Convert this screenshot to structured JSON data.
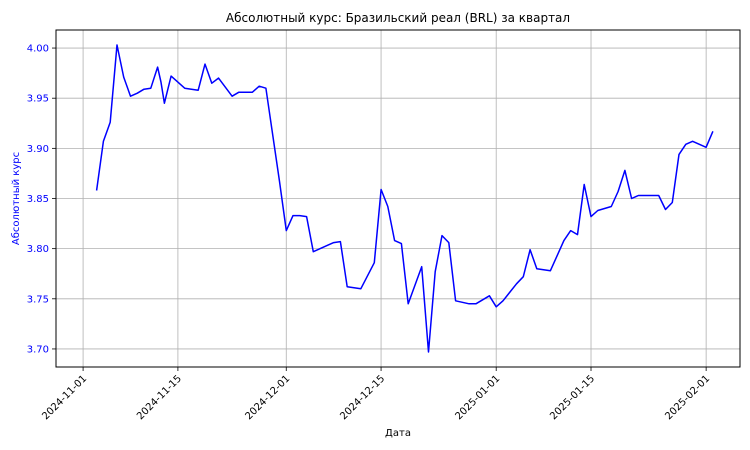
{
  "chart_data": {
    "type": "line",
    "title": "Абсолютный курс: Бразильский реал (BRL) за квартал",
    "xlabel": "Дата",
    "ylabel": "Абсолютный курс",
    "xlim": [
      "2024-10-28",
      "2025-02-06"
    ],
    "ylim": [
      3.682,
      4.018
    ],
    "grid": true,
    "line_color": "#0000ff",
    "ylabel_color": "#0000ff",
    "ytick_color": "#0000ff",
    "x_ticks": [
      "2024-11-01",
      "2024-11-15",
      "2024-12-01",
      "2024-12-15",
      "2025-01-01",
      "2025-01-15",
      "2025-02-01"
    ],
    "y_ticks": [
      "3.70",
      "3.75",
      "3.80",
      "3.85",
      "3.90",
      "3.95",
      "4.00"
    ],
    "series": [
      {
        "x": [
          "2024-11-03",
          "2024-11-04",
          "2024-11-05",
          "2024-11-06",
          "2024-11-07",
          "2024-11-08",
          "2024-11-09",
          "2024-11-10",
          "2024-11-11",
          "2024-11-12",
          "2024-11-12T12",
          "2024-11-13",
          "2024-11-14",
          "2024-11-16",
          "2024-11-17",
          "2024-11-18",
          "2024-11-19",
          "2024-11-20",
          "2024-11-21",
          "2024-11-23",
          "2024-11-24",
          "2024-11-25",
          "2024-11-26",
          "2024-11-27",
          "2024-11-28",
          "2024-11-30",
          "2024-12-01",
          "2024-12-02",
          "2024-12-03",
          "2024-12-04",
          "2024-12-05",
          "2024-12-07",
          "2024-12-08",
          "2024-12-09",
          "2024-12-10",
          "2024-12-11",
          "2024-12-12",
          "2024-12-14",
          "2024-12-15",
          "2024-12-16",
          "2024-12-17",
          "2024-12-18",
          "2024-12-19",
          "2024-12-21",
          "2024-12-22",
          "2024-12-23",
          "2024-12-24",
          "2024-12-25",
          "2024-12-26",
          "2024-12-28",
          "2024-12-29",
          "2024-12-31",
          "2025-01-01",
          "2025-01-02",
          "2025-01-04",
          "2025-01-05",
          "2025-01-06",
          "2025-01-07",
          "2025-01-08",
          "2025-01-09",
          "2025-01-11",
          "2025-01-12",
          "2025-01-13",
          "2025-01-14",
          "2025-01-15",
          "2025-01-16",
          "2025-01-18",
          "2025-01-19",
          "2025-01-20",
          "2025-01-21",
          "2025-01-22",
          "2025-01-23",
          "2025-01-25",
          "2025-01-26",
          "2025-01-27",
          "2025-01-28",
          "2025-01-29",
          "2025-01-30",
          "2025-02-01",
          "2025-02-02"
        ],
        "y": [
          3.858,
          3.907,
          3.926,
          4.003,
          3.971,
          3.952,
          3.955,
          3.959,
          3.96,
          3.981,
          3.966,
          3.945,
          3.972,
          3.96,
          3.959,
          3.958,
          3.984,
          3.965,
          3.97,
          3.952,
          3.956,
          3.956,
          3.956,
          3.962,
          3.96,
          3.867,
          3.818,
          3.833,
          3.833,
          3.832,
          3.797,
          3.803,
          3.806,
          3.807,
          3.762,
          3.761,
          3.76,
          3.786,
          3.859,
          3.842,
          3.808,
          3.805,
          3.745,
          3.782,
          3.697,
          3.777,
          3.813,
          3.806,
          3.748,
          3.745,
          3.745,
          3.753,
          3.742,
          3.748,
          3.765,
          3.772,
          3.799,
          3.78,
          3.779,
          3.778,
          3.808,
          3.818,
          3.814,
          3.864,
          3.832,
          3.838,
          3.842,
          3.857,
          3.878,
          3.85,
          3.853,
          3.853,
          3.853,
          3.839,
          3.846,
          3.894,
          3.904,
          3.907,
          3.901,
          3.917
        ]
      }
    ]
  }
}
